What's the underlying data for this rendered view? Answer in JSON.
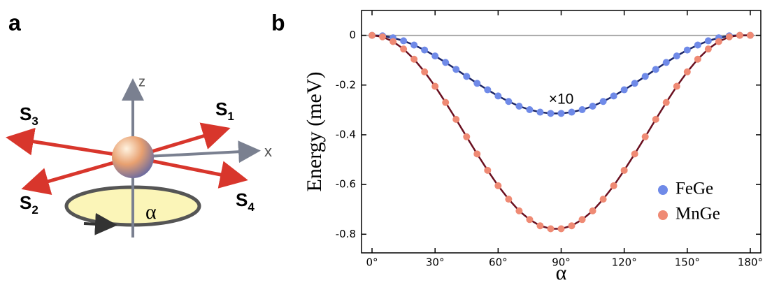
{
  "panels": [
    "a",
    "b"
  ],
  "diagram": {
    "z": "z",
    "x": "x",
    "angle": "α",
    "spins": [
      {
        "main": "S",
        "sub": "1"
      },
      {
        "main": "S",
        "sub": "2"
      },
      {
        "main": "S",
        "sub": "3"
      },
      {
        "main": "S",
        "sub": "4"
      }
    ]
  },
  "chart_data": {
    "type": "line",
    "x_label": "α",
    "y_label": "Energy (meV)",
    "annotation": "×10",
    "x": [
      0,
      5,
      10,
      15,
      20,
      25,
      30,
      35,
      40,
      45,
      50,
      55,
      60,
      65,
      70,
      75,
      80,
      85,
      90,
      95,
      100,
      105,
      110,
      115,
      120,
      125,
      130,
      135,
      140,
      145,
      150,
      155,
      160,
      165,
      170,
      175,
      180
    ],
    "series": [
      {
        "name": "FeGe",
        "color": "#6f8ae8",
        "line_color": "#1a2466",
        "values": [
          0,
          -0.002,
          -0.01,
          -0.022,
          -0.039,
          -0.059,
          -0.083,
          -0.109,
          -0.137,
          -0.165,
          -0.193,
          -0.219,
          -0.244,
          -0.266,
          -0.285,
          -0.299,
          -0.309,
          -0.314,
          -0.314,
          -0.309,
          -0.299,
          -0.285,
          -0.266,
          -0.244,
          -0.219,
          -0.193,
          -0.165,
          -0.137,
          -0.109,
          -0.083,
          -0.059,
          -0.039,
          -0.022,
          -0.01,
          -0.002,
          0,
          0
        ]
      },
      {
        "name": "MnGe",
        "color": "#ef8a74",
        "line_color": "#6a1020",
        "values": [
          0,
          -0.006,
          -0.025,
          -0.055,
          -0.096,
          -0.147,
          -0.205,
          -0.27,
          -0.338,
          -0.408,
          -0.477,
          -0.543,
          -0.605,
          -0.659,
          -0.706,
          -0.741,
          -0.766,
          -0.778,
          -0.778,
          -0.766,
          -0.741,
          -0.706,
          -0.659,
          -0.605,
          -0.543,
          -0.477,
          -0.408,
          -0.338,
          -0.27,
          -0.205,
          -0.147,
          -0.096,
          -0.055,
          -0.025,
          -0.006,
          0,
          0
        ]
      }
    ],
    "xlim": [
      -5,
      185
    ],
    "ylim": [
      -0.875,
      0.1
    ],
    "xticks": [
      {
        "value": 0,
        "label": "0°"
      },
      {
        "value": 30,
        "label": "30°"
      },
      {
        "value": 60,
        "label": "60°"
      },
      {
        "value": 90,
        "label": "90°"
      },
      {
        "value": 120,
        "label": "120°"
      },
      {
        "value": 150,
        "label": "150°"
      },
      {
        "value": 180,
        "label": "180°"
      }
    ],
    "yticks": [
      0,
      -0.2,
      -0.4,
      -0.6,
      -0.8
    ],
    "zero_line": true,
    "legend": "lower-right"
  }
}
